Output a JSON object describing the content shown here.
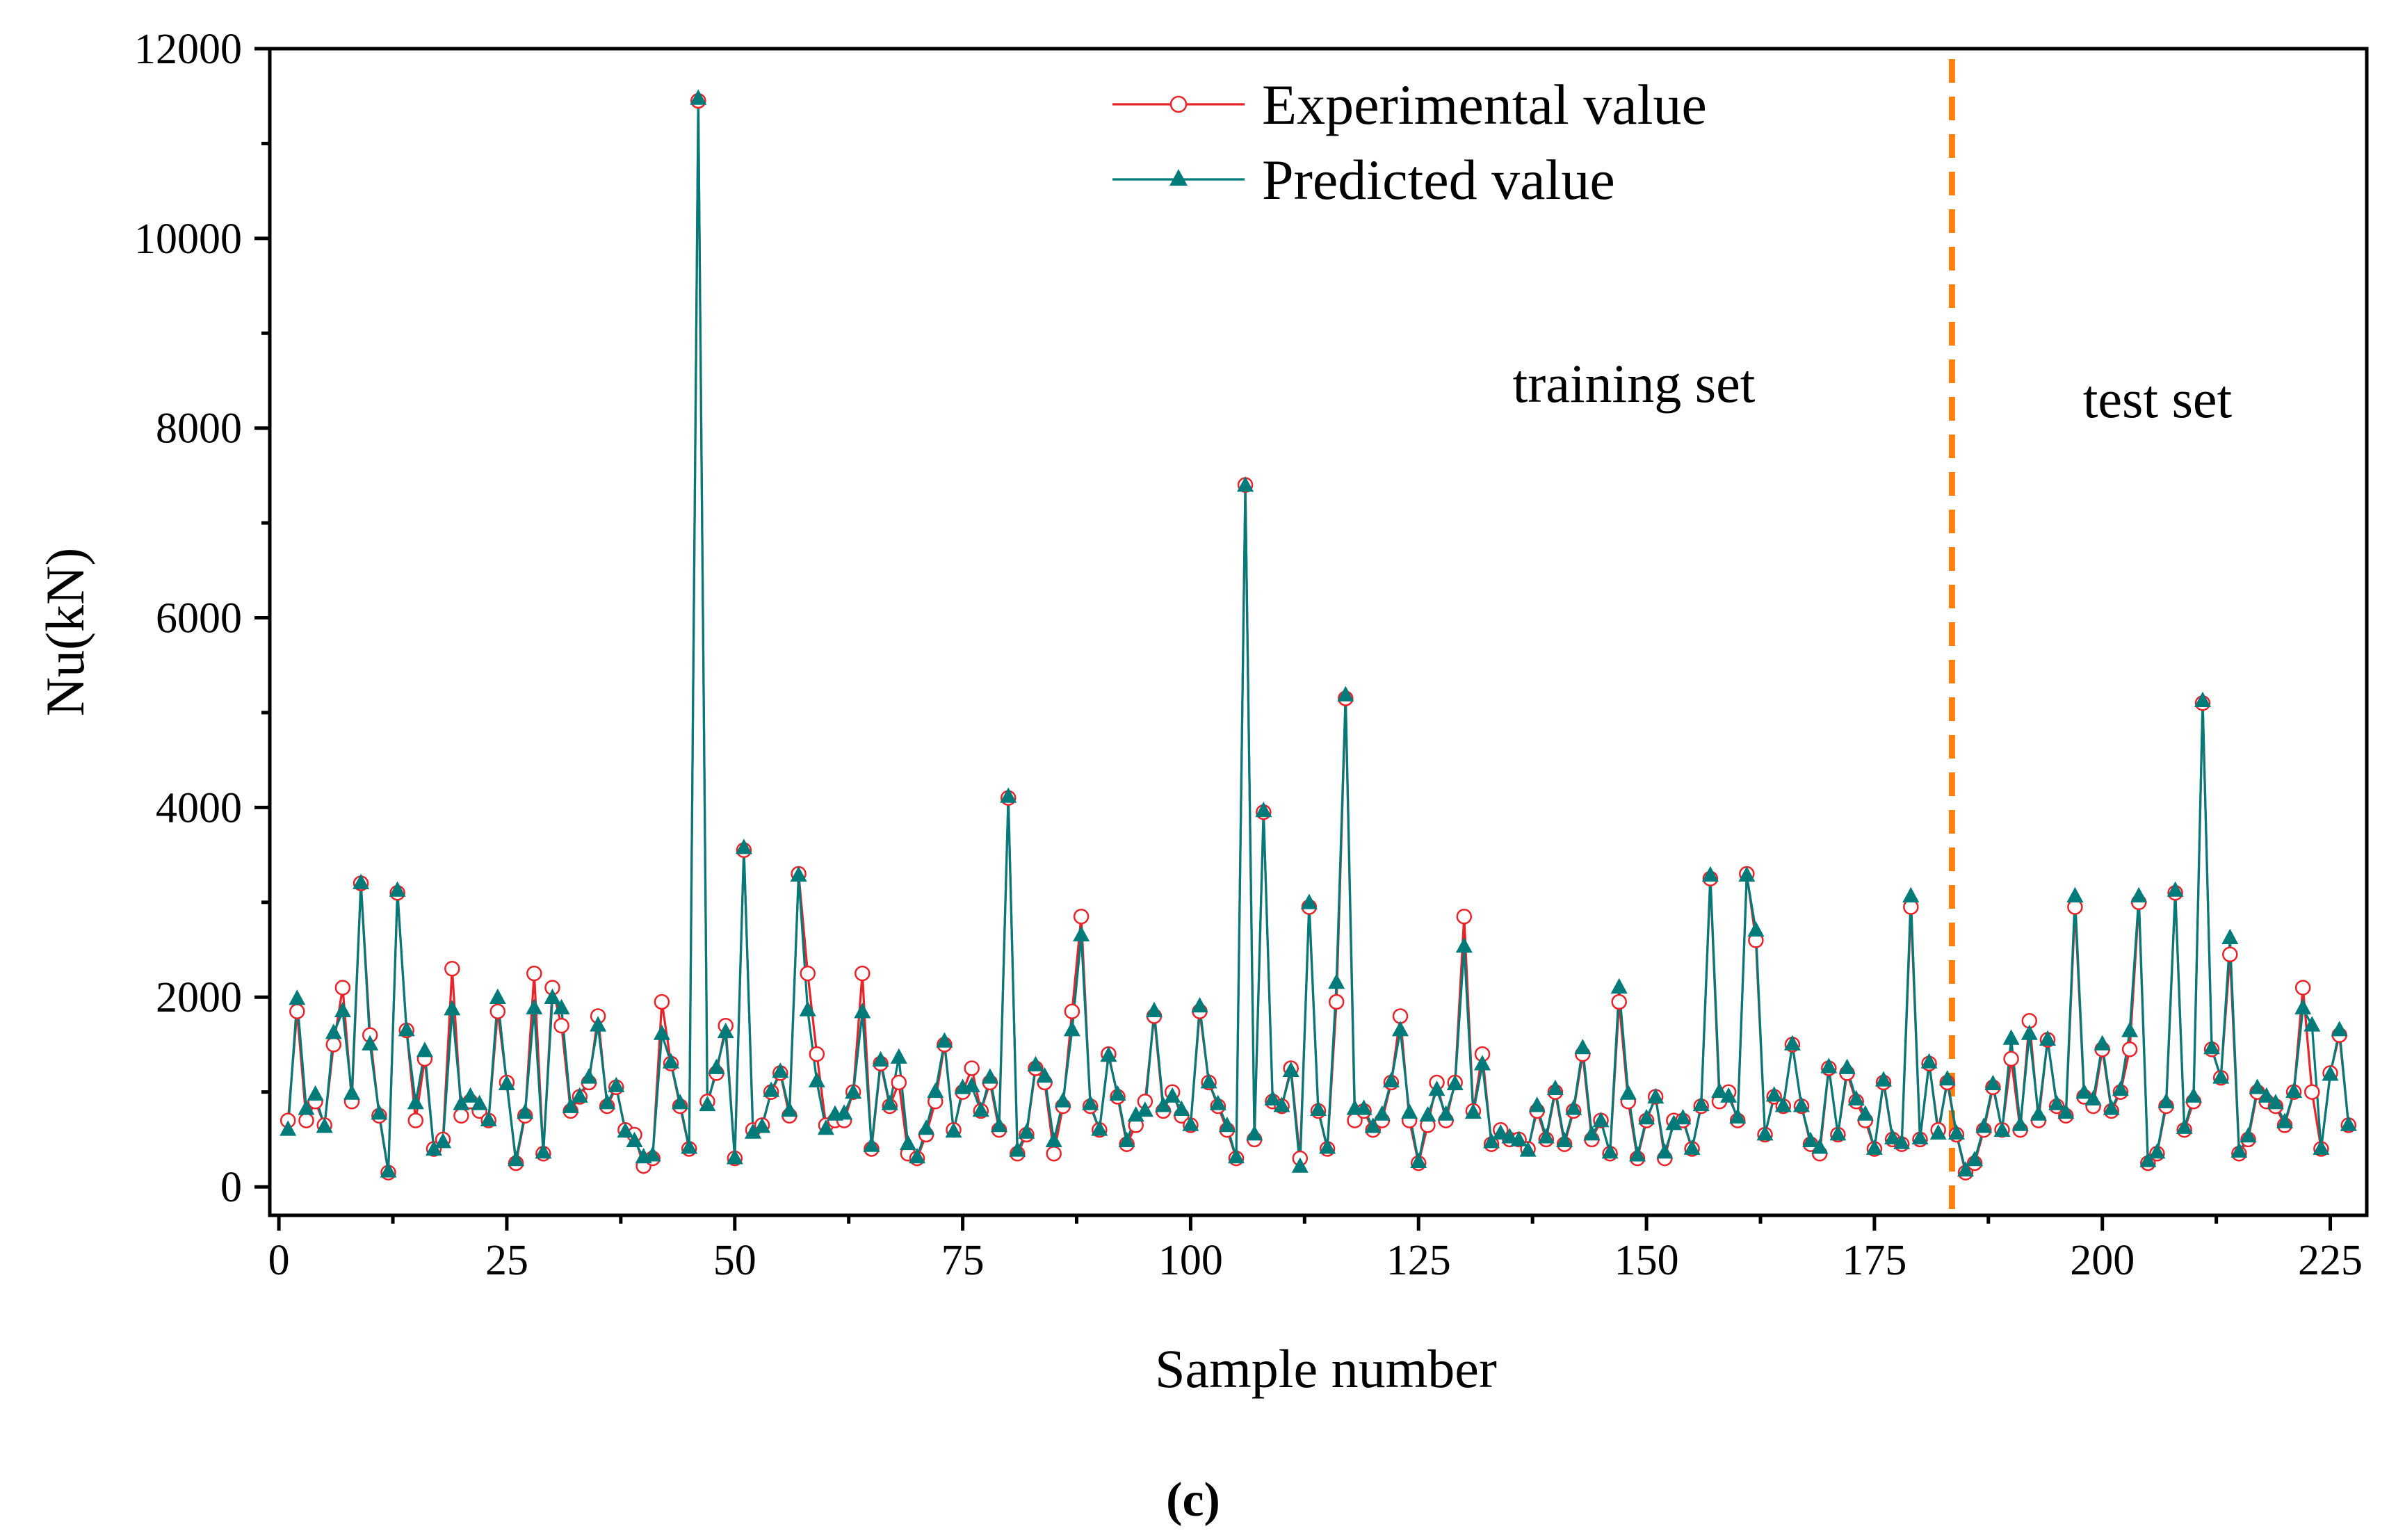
{
  "chart_data": {
    "type": "line",
    "title": "",
    "xlabel": "Sample number",
    "ylabel": "Nu(kN)",
    "xlim": [
      -1,
      229
    ],
    "ylim": [
      -300,
      12000
    ],
    "xticks": [
      0,
      25,
      50,
      75,
      100,
      125,
      150,
      175,
      200,
      225
    ],
    "yticks": [
      0,
      2000,
      4000,
      6000,
      8000,
      10000,
      12000
    ],
    "x_tick_labels": [
      "0",
      "25",
      "50",
      "75",
      "100",
      "125",
      "150",
      "175",
      "200",
      "225"
    ],
    "y_tick_labels": [
      "0",
      "2000",
      "4000",
      "6000",
      "8000",
      "10000",
      "12000"
    ],
    "legend_position": "top-center",
    "split_at": 183.5,
    "region_labels": [
      "training set",
      "test set"
    ],
    "caption": "(c)",
    "series": [
      {
        "name": "Experimental value",
        "color": "#e8232a",
        "marker": "open-circle",
        "values": [
          700,
          1850,
          700,
          900,
          650,
          1500,
          2100,
          900,
          3200,
          1600,
          750,
          150,
          3100,
          1650,
          700,
          1350,
          400,
          500,
          2300,
          750,
          900,
          800,
          700,
          1850,
          1100,
          250,
          750,
          2250,
          350,
          2100,
          1700,
          800,
          950,
          1100,
          1800,
          850,
          1050,
          600,
          550,
          220,
          300,
          1950,
          1300,
          850,
          400,
          11450,
          900,
          1200,
          1700,
          300,
          3550,
          600,
          650,
          1000,
          1200,
          750,
          3300,
          2250,
          1400,
          650,
          700,
          700,
          1000,
          2250,
          400,
          1300,
          850,
          1100,
          350,
          300,
          550,
          900,
          1500,
          600,
          1000,
          1250,
          800,
          1100,
          600,
          4100,
          350,
          550,
          1250,
          1100,
          350,
          850,
          1850,
          2850,
          850,
          600,
          1400,
          950,
          450,
          650,
          900,
          1800,
          800,
          1000,
          750,
          650,
          1850,
          1100,
          850,
          600,
          300,
          7400,
          500,
          3950,
          900,
          850,
          1250,
          300,
          2950,
          800,
          400,
          1950,
          5150,
          700,
          800,
          600,
          700,
          1100,
          1800,
          700,
          250,
          650,
          1100,
          700,
          1100,
          2850,
          800,
          1400,
          450,
          600,
          500,
          500,
          400,
          800,
          500,
          1000,
          450,
          800,
          1400,
          500,
          700,
          350,
          1950,
          900,
          300,
          700,
          950,
          300,
          700,
          700,
          400,
          850,
          3250,
          900,
          1000,
          700,
          3300,
          2600,
          550,
          950,
          850,
          1500,
          850,
          450,
          350,
          1250,
          550,
          1200,
          900,
          700,
          400,
          1100,
          500,
          450,
          2950,
          500,
          1300,
          600,
          1100,
          550,
          150,
          250,
          600,
          1050,
          600,
          1350,
          600,
          1750,
          700,
          1550,
          850,
          750,
          2950,
          950,
          850,
          1450,
          800,
          1000,
          1450,
          3000,
          250,
          350,
          850,
          3100,
          600,
          900,
          5100,
          1450,
          1150,
          2450,
          350,
          500,
          1000,
          900,
          850,
          650,
          1000,
          2100,
          1000,
          400,
          1200,
          1600,
          650
        ]
      },
      {
        "name": "Predicted value",
        "color": "#007b79",
        "marker": "filled-triangle",
        "values": [
          600,
          1980,
          820,
          970,
          630,
          1620,
          1850,
          980,
          3200,
          1500,
          770,
          160,
          3120,
          1650,
          880,
          1430,
          390,
          470,
          1870,
          870,
          950,
          870,
          700,
          1990,
          1080,
          280,
          780,
          1880,
          360,
          1990,
          1880,
          840,
          950,
          1150,
          1700,
          880,
          1060,
          580,
          480,
          310,
          330,
          1610,
          1310,
          880,
          410,
          11470,
          860,
          1250,
          1630,
          300,
          3570,
          570,
          630,
          1010,
          1210,
          800,
          3280,
          1860,
          1110,
          610,
          760,
          770,
          990,
          1840,
          430,
          1330,
          870,
          1360,
          450,
          310,
          610,
          1000,
          1530,
          580,
          1040,
          1060,
          800,
          1150,
          640,
          4110,
          380,
          570,
          1280,
          1160,
          480,
          900,
          1650,
          2650,
          870,
          600,
          1380,
          970,
          480,
          750,
          800,
          1850,
          850,
          950,
          810,
          650,
          1900,
          1100,
          870,
          640,
          310,
          7390,
          550,
          3960,
          920,
          850,
          1220,
          210,
          2990,
          810,
          410,
          2150,
          5180,
          820,
          820,
          630,
          760,
          1110,
          1650,
          780,
          260,
          750,
          1020,
          760,
          1080,
          2530,
          780,
          1290,
          470,
          560,
          520,
          490,
          380,
          850,
          520,
          1030,
          480,
          820,
          1460,
          550,
          690,
          360,
          2100,
          980,
          330,
          720,
          940,
          360,
          660,
          720,
          400,
          860,
          3280,
          1000,
          950,
          730,
          3280,
          2700,
          550,
          960,
          850,
          1500,
          850,
          480,
          410,
          1260,
          550,
          1250,
          920,
          760,
          400,
          1120,
          510,
          460,
          3060,
          510,
          1310,
          560,
          1130,
          560,
          170,
          280,
          630,
          1080,
          590,
          1560,
          650,
          1610,
          760,
          1550,
          870,
          780,
          3060,
          990,
          920,
          1500,
          820,
          1020,
          1640,
          3060,
          270,
          360,
          890,
          3120,
          620,
          950,
          5120,
          1460,
          1150,
          2620,
          370,
          530,
          1040,
          950,
          880,
          680,
          1000,
          1880,
          1700,
          400,
          1180,
          1650,
          650
        ]
      }
    ]
  }
}
